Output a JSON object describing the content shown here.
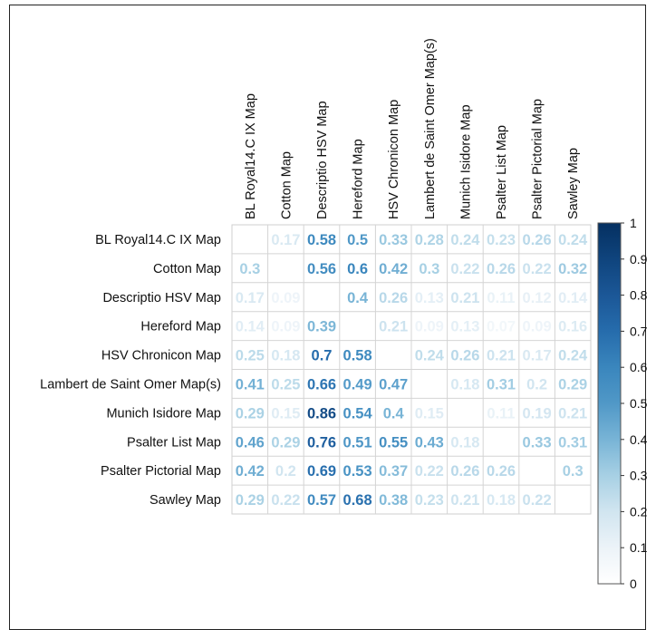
{
  "chart_data": {
    "type": "heatmap",
    "title": "",
    "row_labels": [
      "BL Royal14.C IX Map",
      "Cotton Map",
      "Descriptio HSV Map",
      "Hereford Map",
      "HSV Chronicon Map",
      "Lambert de Saint Omer Map(s)",
      "Munich Isidore Map",
      "Psalter List Map",
      "Psalter Pictorial Map",
      "Sawley Map"
    ],
    "col_labels": [
      "BL Royal14.C IX Map",
      "Cotton Map",
      "Descriptio HSV Map",
      "Hereford Map",
      "HSV Chronicon Map",
      "Lambert de Saint Omer Map(s)",
      "Munich Isidore Map",
      "Psalter List Map",
      "Psalter Pictorial Map",
      "Sawley Map"
    ],
    "values": [
      [
        null,
        0.17,
        0.58,
        0.5,
        0.33,
        0.28,
        0.24,
        0.23,
        0.26,
        0.24
      ],
      [
        0.3,
        null,
        0.56,
        0.6,
        0.42,
        0.3,
        0.22,
        0.26,
        0.22,
        0.32
      ],
      [
        0.17,
        0.09,
        null,
        0.4,
        0.26,
        0.13,
        0.21,
        0.11,
        0.12,
        0.14
      ],
      [
        0.14,
        0.09,
        0.39,
        null,
        0.21,
        0.09,
        0.13,
        0.07,
        0.09,
        0.16
      ],
      [
        0.25,
        0.18,
        0.7,
        0.58,
        null,
        0.24,
        0.26,
        0.21,
        0.17,
        0.24
      ],
      [
        0.41,
        0.25,
        0.66,
        0.49,
        0.47,
        null,
        0.18,
        0.31,
        0.2,
        0.29
      ],
      [
        0.29,
        0.15,
        0.86,
        0.54,
        0.4,
        0.15,
        null,
        0.11,
        0.19,
        0.21
      ],
      [
        0.46,
        0.29,
        0.76,
        0.51,
        0.55,
        0.43,
        0.18,
        null,
        0.33,
        0.31
      ],
      [
        0.42,
        0.2,
        0.69,
        0.53,
        0.37,
        0.22,
        0.26,
        0.26,
        null,
        0.3
      ],
      [
        0.29,
        0.22,
        0.57,
        0.68,
        0.38,
        0.23,
        0.21,
        0.18,
        0.22,
        null
      ]
    ],
    "colorbar": {
      "min": 0,
      "max": 1,
      "ticks": [
        "0",
        "0.1",
        "0.2",
        "0.3",
        "0.4",
        "0.5",
        "0.6",
        "0.7",
        "0.8",
        "0.9",
        "1"
      ]
    },
    "colors": {
      "low": "#ffffff",
      "high": "#053061",
      "grid": "#cccccc"
    }
  }
}
